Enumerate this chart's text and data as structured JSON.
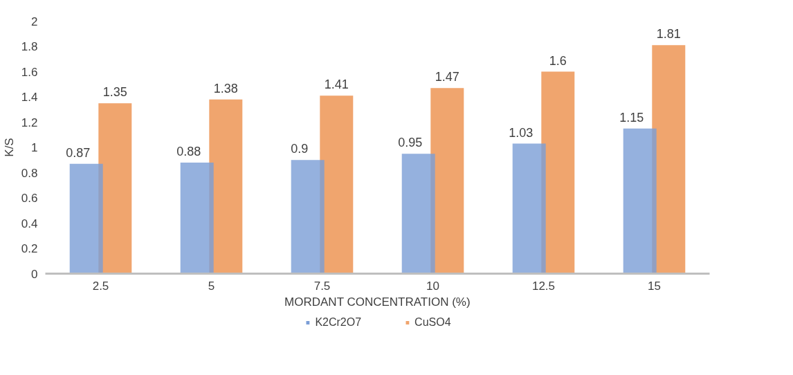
{
  "chart_data": {
    "type": "bar",
    "categories": [
      "2.5",
      "5",
      "7.5",
      "10",
      "12.5",
      "15"
    ],
    "xlabel": "MORDANT CONCENTRATION (%)",
    "ylabel": "K/S",
    "series": [
      {
        "name": "K2Cr2O7",
        "color": "#7b9ed6",
        "values": [
          0.87,
          0.88,
          0.9,
          0.95,
          1.03,
          1.15
        ]
      },
      {
        "name": "CuSO4",
        "color": "#f0a56e",
        "values": [
          1.35,
          1.38,
          1.41,
          1.47,
          1.6,
          1.81
        ]
      }
    ],
    "ylim": [
      0,
      2
    ],
    "yticks": [
      0,
      0.2,
      0.4,
      0.6,
      0.8,
      1,
      1.2,
      1.4,
      1.6,
      1.8,
      2
    ],
    "data_labels": true,
    "grid": false,
    "legend": "bottom"
  }
}
